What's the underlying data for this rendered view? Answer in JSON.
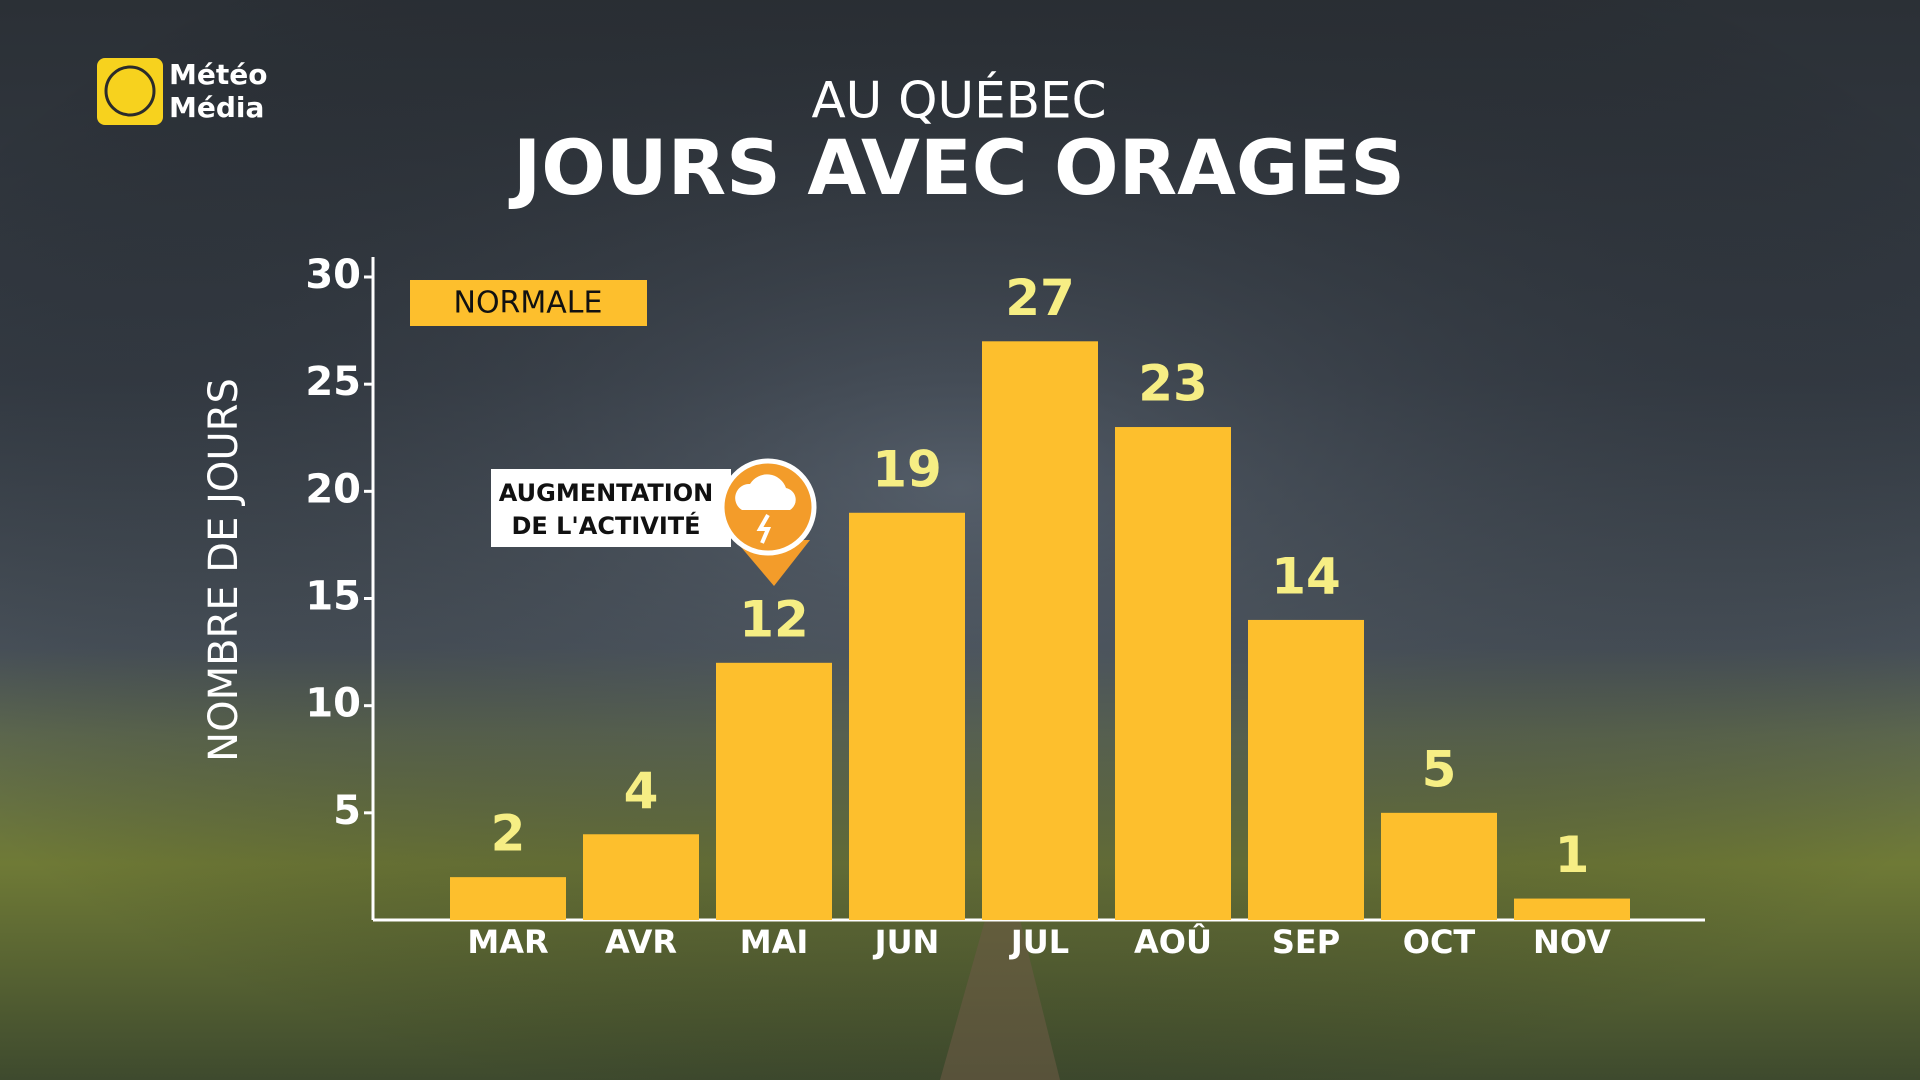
{
  "logo": [
    "Météo",
    "Média"
  ],
  "chart_data": {
    "type": "bar",
    "subtitle": "AU QUÉBEC",
    "title": "JOURS AVEC ORAGES",
    "y_label": "NOMBRE DE JOURS",
    "categories": [
      "MAR",
      "AVR",
      "MAI",
      "JUN",
      "JUL",
      "AOÛ",
      "SEP",
      "OCT",
      "NOV"
    ],
    "series": [
      {
        "name": "NORMALE",
        "color": "#fdbf2d",
        "values": [
          2,
          4,
          12,
          19,
          27,
          23,
          14,
          5,
          1
        ]
      }
    ],
    "ylim": [
      0,
      30
    ],
    "yticks": [
      5,
      10,
      15,
      20,
      25,
      30
    ],
    "annotation": [
      "AUGMENTATION",
      "DE L'ACTIVITÉ"
    ]
  }
}
